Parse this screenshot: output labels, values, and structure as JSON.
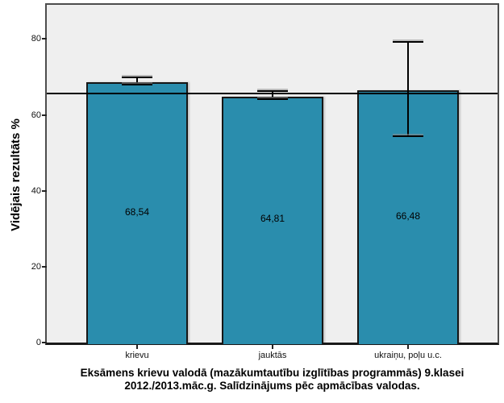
{
  "colors": {
    "bar_fill": "#2a8dad",
    "bar_border": "#161616",
    "plot_background": "#efefef",
    "frame_border": "#4d4d4d",
    "axis_line": "#1a1a1a",
    "reference_line": "#000000",
    "error_bar": "#000000",
    "text": "#000000",
    "page_background": "#ffffff"
  },
  "chart_data": {
    "type": "bar",
    "title_line1": "Eksāmens krievu valodā (mazākumtautību izglītības programmās) 9.klasei",
    "title_line2": "2012./2013.māc.g. Salīdzinājums pēc apmācības valodas.",
    "ylabel": "Vidējais rezultāts %",
    "xlabel": "",
    "categories": [
      "krievu",
      "jauktās",
      "ukraiņu, poļu u.c."
    ],
    "values": [
      68.54,
      64.81,
      66.48
    ],
    "value_labels": [
      "68,54",
      "64,81",
      "66,48"
    ],
    "error_bars": [
      {
        "lower": 67.9,
        "upper": 69.8
      },
      {
        "lower": 64.1,
        "upper": 66.2
      },
      {
        "lower": 54.4,
        "upper": 79.3
      }
    ],
    "reference_line": 65.6,
    "yticks": [
      0,
      20,
      40,
      60,
      80
    ],
    "ytick_labels": [
      "0",
      "20",
      "40",
      "60",
      "80"
    ],
    "ylim": [
      0,
      89
    ],
    "grid": false,
    "legend": "none"
  }
}
